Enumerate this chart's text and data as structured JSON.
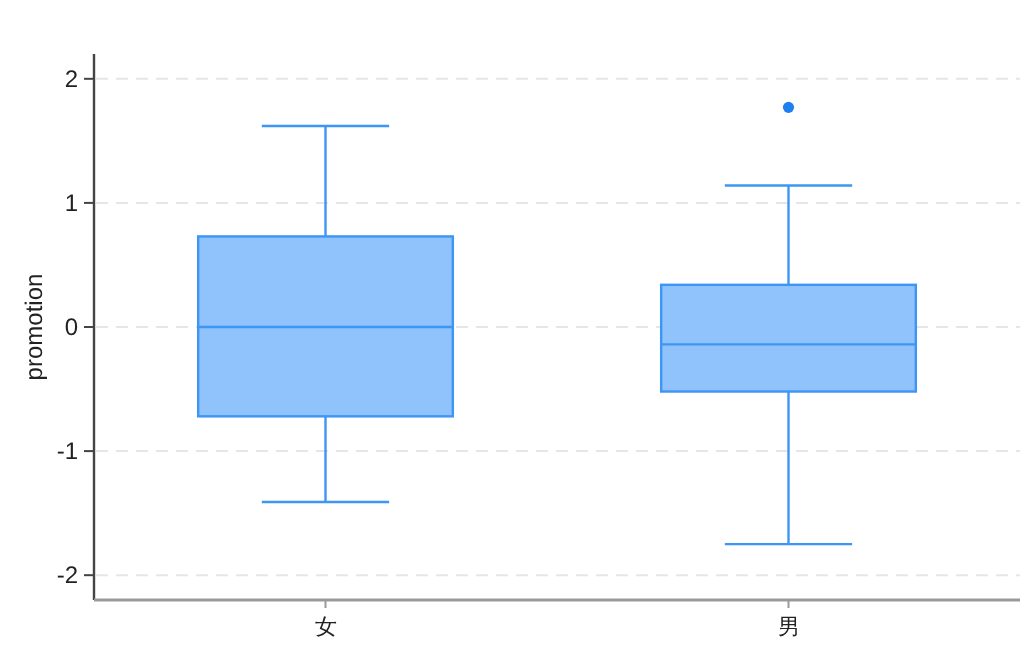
{
  "chart_data": {
    "type": "box",
    "categories": [
      "女",
      "男"
    ],
    "ylabel": "promotion",
    "ylim": [
      -2.2,
      2.2
    ],
    "yticks": [
      -2,
      -1,
      0,
      1,
      2
    ],
    "grid": "y",
    "color": "#90c2fb",
    "boxes": [
      {
        "low": -1.41,
        "q1": -0.72,
        "median": 0,
        "q3": 0.73,
        "high": 1.62
      },
      {
        "low": -1.75,
        "q1": -0.52,
        "median": -0.14,
        "q3": 0.34,
        "high": 1.14,
        "outliers": [
          1.77
        ]
      }
    ]
  }
}
